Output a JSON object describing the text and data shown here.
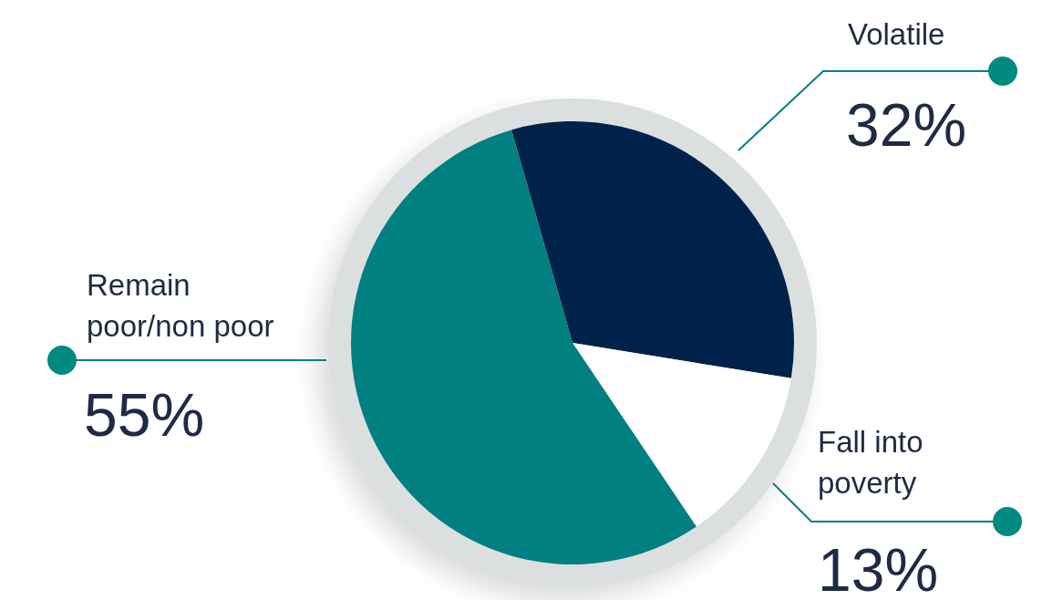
{
  "chart_data": {
    "type": "pie",
    "categories": [
      "Volatile",
      "Fall into poverty",
      "Remain poor/non poor"
    ],
    "values": [
      32,
      13,
      55
    ],
    "value_labels": [
      "32%",
      "13%",
      "55%"
    ],
    "colors": [
      "#00224a",
      "#ffffff",
      "#008080"
    ],
    "legend": false
  }
}
